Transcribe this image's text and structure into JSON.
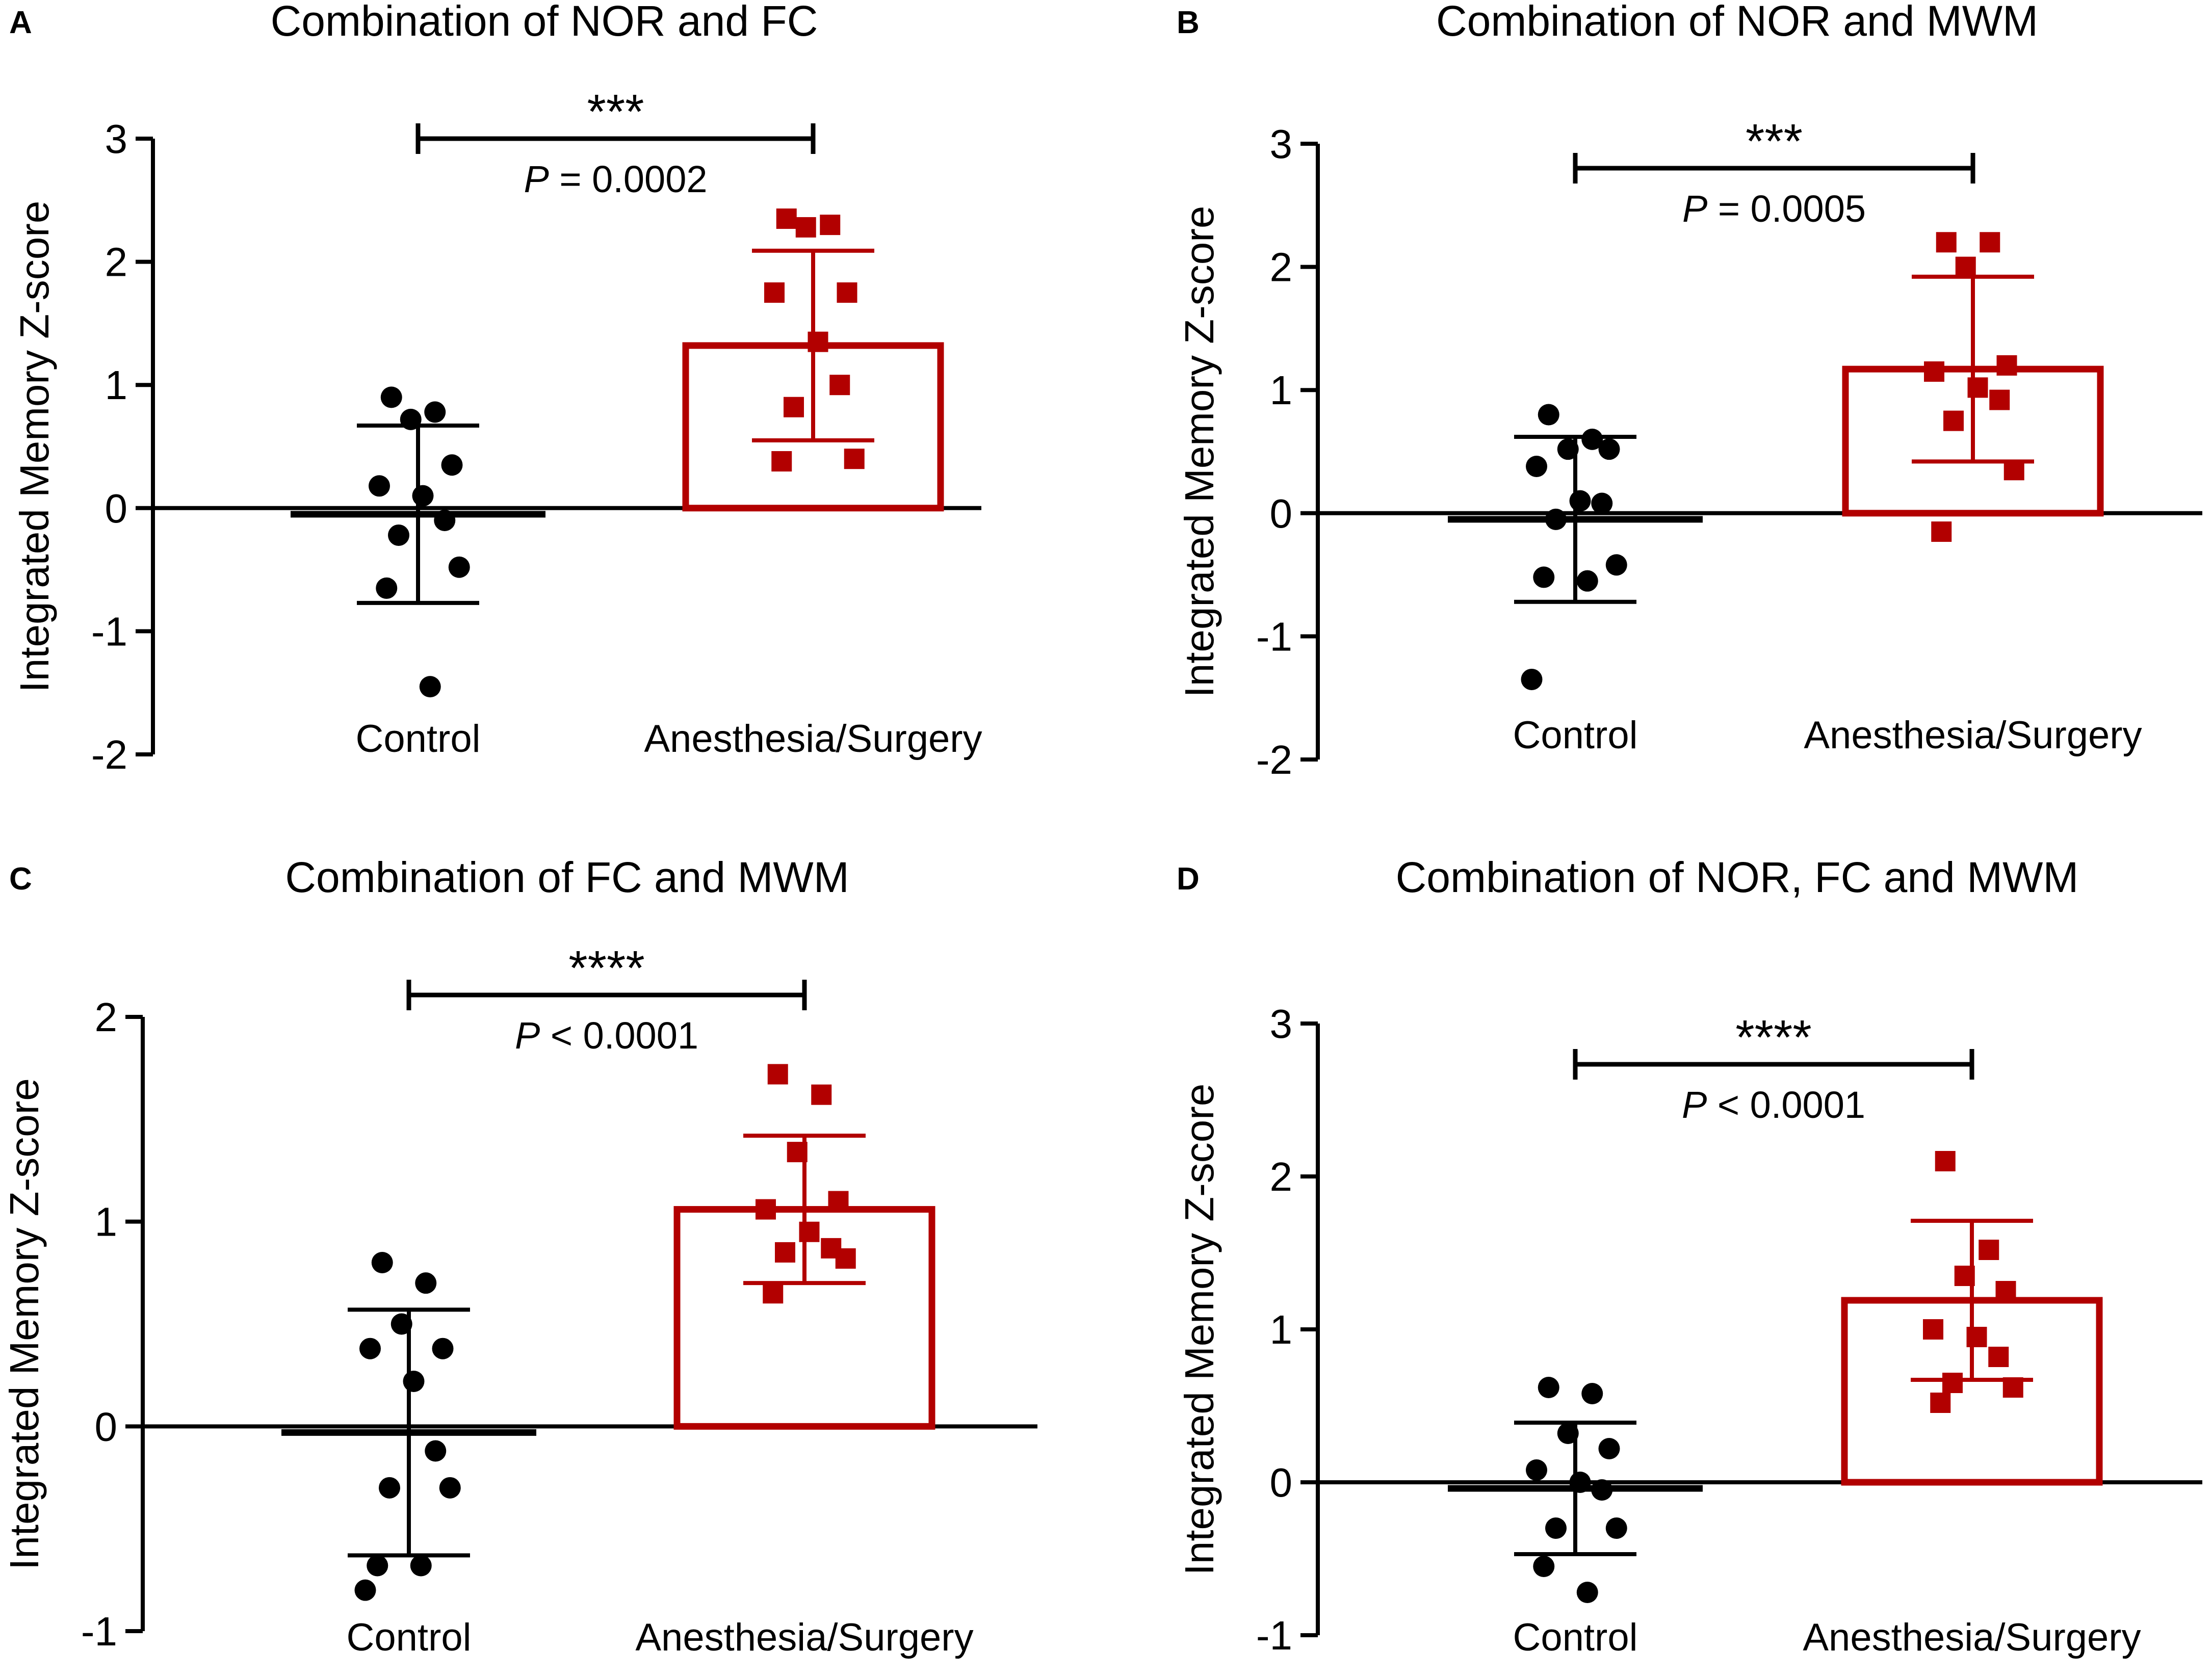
{
  "colors": {
    "axis": "#000000",
    "control": "#000000",
    "treatment": "#b20000"
  },
  "chart_data": [
    {
      "panel": "A",
      "type": "bar",
      "title": "Combination of NOR and FC",
      "ylabel": "Integrated Memory Z-score",
      "xlabel": "",
      "ylim": [
        -2,
        3
      ],
      "yticks": [
        "-2",
        "-1",
        "0",
        "1",
        "2",
        "3"
      ],
      "grid": false,
      "categories": [
        "Control",
        "Anesthesia/Surgery"
      ],
      "series": [
        {
          "name": "Control",
          "mean": -0.05,
          "sd": 0.72,
          "bar_outline": false,
          "points": [
            0.9,
            0.78,
            0.72,
            0.35,
            0.18,
            0.1,
            -0.1,
            -0.22,
            -0.48,
            -0.65,
            -1.45
          ]
        },
        {
          "name": "Anesthesia/Surgery",
          "mean": 1.32,
          "sd": 0.77,
          "bar_outline": true,
          "points": [
            2.35,
            2.3,
            2.28,
            1.75,
            1.75,
            1.35,
            1.0,
            0.82,
            0.4,
            0.38
          ]
        }
      ],
      "significance": {
        "stars": "***",
        "p_label": "P",
        "p_text": "= 0.0002"
      }
    },
    {
      "panel": "B",
      "type": "bar",
      "title": "Combination of NOR and MWM",
      "ylabel": "Integrated Memory Z-score",
      "xlabel": "",
      "ylim": [
        -2,
        3
      ],
      "yticks": [
        "-2",
        "-1",
        "0",
        "1",
        "2",
        "3"
      ],
      "grid": false,
      "categories": [
        "Control",
        "Anesthesia/Surgery"
      ],
      "series": [
        {
          "name": "Control",
          "mean": -0.05,
          "sd": 0.67,
          "bar_outline": false,
          "points": [
            0.8,
            0.6,
            0.52,
            0.52,
            0.38,
            0.1,
            0.08,
            -0.05,
            -0.42,
            -0.52,
            -0.55,
            -1.35
          ]
        },
        {
          "name": "Anesthesia/Surgery",
          "mean": 1.17,
          "sd": 0.75,
          "bar_outline": true,
          "points": [
            2.2,
            2.2,
            2.0,
            1.2,
            1.15,
            1.02,
            0.92,
            0.75,
            0.35,
            -0.15
          ]
        }
      ],
      "significance": {
        "stars": "***",
        "p_label": "P",
        "p_text": "= 0.0005"
      }
    },
    {
      "panel": "C",
      "type": "bar",
      "title": "Combination of FC and MWM",
      "ylabel": "Integrated Memory Z-score",
      "xlabel": "",
      "ylim": [
        -1,
        2
      ],
      "yticks": [
        "-1",
        "0",
        "1",
        "2"
      ],
      "grid": false,
      "categories": [
        "Control",
        "Anesthesia/Surgery"
      ],
      "series": [
        {
          "name": "Control",
          "mean": -0.03,
          "sd": 0.6,
          "bar_outline": false,
          "points": [
            0.8,
            0.7,
            0.5,
            0.38,
            0.38,
            0.22,
            -0.12,
            -0.3,
            -0.3,
            -0.68,
            -0.68,
            -0.8
          ]
        },
        {
          "name": "Anesthesia/Surgery",
          "mean": 1.06,
          "sd": 0.36,
          "bar_outline": true,
          "points": [
            1.72,
            1.62,
            1.34,
            1.1,
            1.06,
            0.95,
            0.87,
            0.85,
            0.82,
            0.65
          ]
        }
      ],
      "significance": {
        "stars": "****",
        "p_label": "P",
        "p_text": "< 0.0001"
      }
    },
    {
      "panel": "D",
      "type": "bar",
      "title": "Combination of NOR, FC and MWM",
      "ylabel": "Integrated Memory Z-score",
      "xlabel": "",
      "ylim": [
        -1,
        3
      ],
      "yticks": [
        "-1",
        "0",
        "1",
        "2",
        "3"
      ],
      "grid": false,
      "categories": [
        "Control",
        "Anesthesia/Surgery"
      ],
      "series": [
        {
          "name": "Control",
          "mean": -0.04,
          "sd": 0.43,
          "bar_outline": false,
          "points": [
            0.62,
            0.58,
            0.32,
            0.22,
            0.08,
            0.0,
            -0.05,
            -0.3,
            -0.3,
            -0.55,
            -0.72
          ]
        },
        {
          "name": "Anesthesia/Surgery",
          "mean": 1.19,
          "sd": 0.52,
          "bar_outline": true,
          "points": [
            2.1,
            1.52,
            1.35,
            1.25,
            1.0,
            0.95,
            0.82,
            0.65,
            0.62,
            0.52
          ]
        }
      ],
      "significance": {
        "stars": "****",
        "p_label": "P",
        "p_text": "< 0.0001"
      }
    }
  ]
}
